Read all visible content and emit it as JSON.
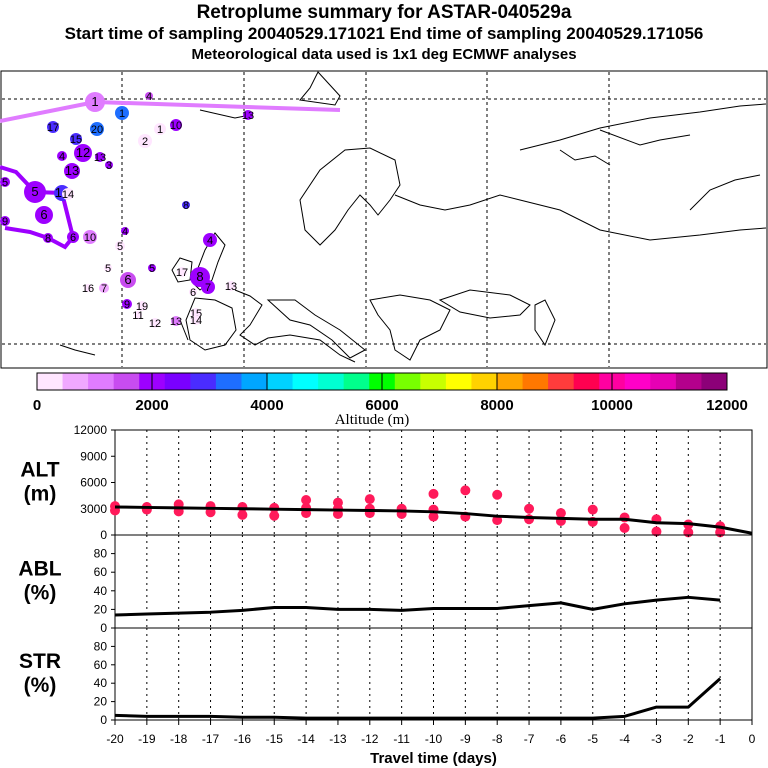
{
  "header": {
    "title": "Retroplume summary for ASTAR-040529a",
    "sampling": "Start time of sampling 20040529.171021      End time of sampling 20040529.171056",
    "met": "Meteorological data used is 1x1 deg ECMWF analyses"
  },
  "colorbar": {
    "label": "Altitude (m)",
    "ticks": [
      "0",
      "2000",
      "4000",
      "6000",
      "8000",
      "10000",
      "12000"
    ],
    "colors": [
      "#ffe6ff",
      "#f0a8ff",
      "#e07cff",
      "#c84cf0",
      "#9d00ff",
      "#7a00ff",
      "#4a2cff",
      "#1e6eff",
      "#00a6ff",
      "#00d2ff",
      "#00ffff",
      "#00ffd2",
      "#00ff8c",
      "#00ff00",
      "#78ff00",
      "#c8ff00",
      "#ffff00",
      "#ffd200",
      "#ffa500",
      "#ff7800",
      "#ff3c3c",
      "#ff0050",
      "#ff00a0",
      "#ff00c8",
      "#e600b4",
      "#b4008c",
      "#8c0078"
    ]
  },
  "map": {
    "plume_labels": [
      "1",
      "2",
      "3",
      "4",
      "5",
      "6",
      "7",
      "8",
      "9",
      "10",
      "11",
      "12",
      "13",
      "14",
      "15",
      "16",
      "17",
      "18",
      "19",
      "20"
    ]
  },
  "chart_data": [
    {
      "type": "line",
      "panel": "ALT",
      "ylabel": "ALT\n(m)",
      "ylabel_lines": [
        "ALT",
        "(m)"
      ],
      "ylim": [
        0,
        12000
      ],
      "yticks": [
        0,
        3000,
        6000,
        9000,
        12000
      ],
      "x": [
        -20,
        -19,
        -18,
        -17,
        -16,
        -15,
        -14,
        -13,
        -12,
        -11,
        -10,
        -9,
        -8,
        -7,
        -6,
        -5,
        -4,
        -3,
        -2,
        -1,
        0
      ],
      "series": [
        {
          "name": "mean altitude",
          "values": [
            3200,
            3150,
            3100,
            3050,
            3000,
            2950,
            2900,
            2850,
            2800,
            2750,
            2650,
            2450,
            2150,
            2000,
            1900,
            1800,
            1800,
            1400,
            1300,
            900,
            200
          ]
        }
      ],
      "scatter": {
        "name": "plume clusters",
        "color": "#ff1a5a",
        "points": [
          [
            -20,
            3300
          ],
          [
            -20,
            2800
          ],
          [
            -19,
            3200
          ],
          [
            -19,
            2900
          ],
          [
            -18,
            3500
          ],
          [
            -18,
            2700
          ],
          [
            -17,
            3300
          ],
          [
            -17,
            2600
          ],
          [
            -16,
            3200
          ],
          [
            -16,
            2300
          ],
          [
            -15,
            3100
          ],
          [
            -15,
            2200
          ],
          [
            -14,
            3100
          ],
          [
            -14,
            2500
          ],
          [
            -14,
            4000
          ],
          [
            -13,
            3000
          ],
          [
            -13,
            2400
          ],
          [
            -13,
            3700
          ],
          [
            -12,
            3000
          ],
          [
            -12,
            2500
          ],
          [
            -12,
            4100
          ],
          [
            -11,
            3000
          ],
          [
            -11,
            2400
          ],
          [
            -10,
            2900
          ],
          [
            -10,
            2100
          ],
          [
            -10,
            4700
          ],
          [
            -9,
            2100
          ],
          [
            -9,
            5100
          ],
          [
            -8,
            1700
          ],
          [
            -8,
            4600
          ],
          [
            -7,
            1800
          ],
          [
            -7,
            3000
          ],
          [
            -6,
            1600
          ],
          [
            -6,
            2500
          ],
          [
            -5,
            2900
          ],
          [
            -5,
            1500
          ],
          [
            -4,
            2000
          ],
          [
            -4,
            800
          ],
          [
            -3,
            1800
          ],
          [
            -3,
            400
          ],
          [
            -2,
            1200
          ],
          [
            -2,
            300
          ],
          [
            -1,
            1000
          ],
          [
            -1,
            300
          ]
        ]
      }
    },
    {
      "type": "line",
      "panel": "ABL",
      "ylabel": "ABL\n(%)",
      "ylabel_lines": [
        "ABL",
        "(%)"
      ],
      "ylim": [
        0,
        100
      ],
      "yticks": [
        0,
        20,
        40,
        60,
        80
      ],
      "x": [
        -20,
        -19,
        -18,
        -17,
        -16,
        -15,
        -14,
        -13,
        -12,
        -11,
        -10,
        -9,
        -8,
        -7,
        -6,
        -5,
        -4,
        -3,
        -2,
        -1
      ],
      "series": [
        {
          "name": "ABL fraction",
          "values": [
            14,
            15,
            16,
            17,
            19,
            22,
            22,
            20,
            20,
            19,
            21,
            21,
            21,
            24,
            27,
            20,
            26,
            30,
            33,
            30
          ]
        }
      ]
    },
    {
      "type": "line",
      "panel": "STR",
      "ylabel": "STR\n(%)",
      "ylabel_lines": [
        "STR",
        "(%)"
      ],
      "ylim": [
        0,
        100
      ],
      "yticks": [
        0,
        20,
        40,
        60,
        80
      ],
      "x": [
        -20,
        -19,
        -18,
        -17,
        -16,
        -15,
        -14,
        -13,
        -12,
        -11,
        -10,
        -9,
        -8,
        -7,
        -6,
        -5,
        -4,
        -3,
        -2,
        -1
      ],
      "series": [
        {
          "name": "STR fraction",
          "values": [
            5,
            4,
            4,
            4,
            3,
            3,
            2,
            2,
            2,
            2,
            2,
            2,
            2,
            2,
            2,
            2,
            4,
            14,
            14,
            45
          ]
        }
      ]
    }
  ],
  "xaxis": {
    "label": "Travel time (days)",
    "ticks": [
      "-20",
      "-19",
      "-18",
      "-17",
      "-16",
      "-15",
      "-14",
      "-13",
      "-12",
      "-11",
      "-10",
      "-9",
      "-8",
      "-7",
      "-6",
      "-5",
      "-4",
      "-3",
      "-2",
      "-1",
      "0"
    ]
  }
}
